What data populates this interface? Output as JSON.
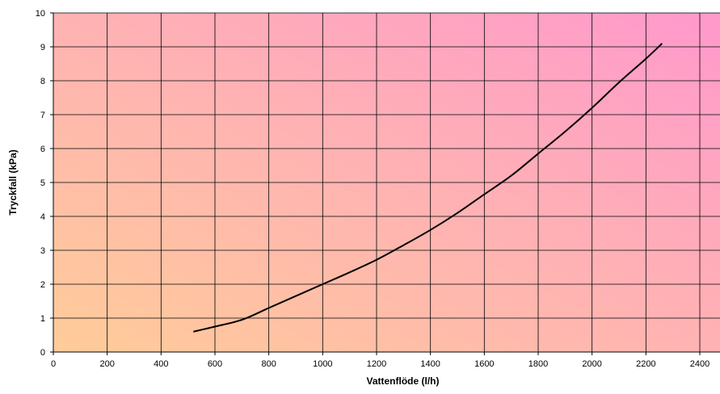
{
  "chart_data": {
    "type": "line",
    "xlabel": "Vattenflöde (l/h)",
    "ylabel": "Tryckfall (kPa)",
    "xlim": [
      0,
      2475
    ],
    "ylim": [
      0,
      10
    ],
    "x_ticks": [
      "0",
      "200",
      "400",
      "600",
      "800",
      "1000",
      "1200",
      "1400",
      "1600",
      "1800",
      "2000",
      "2200",
      "2400"
    ],
    "y_ticks": [
      "0",
      "1",
      "2",
      "3",
      "4",
      "5",
      "6",
      "7",
      "8",
      "9",
      "10"
    ],
    "grid": true,
    "series": [
      {
        "x": [
          520,
          600,
          700,
          800,
          900,
          1000,
          1100,
          1200,
          1300,
          1400,
          1500,
          1600,
          1700,
          1800,
          1900,
          2000,
          2100,
          2200,
          2260
        ],
        "y": [
          0.6,
          0.75,
          0.95,
          1.3,
          1.65,
          2.0,
          2.35,
          2.72,
          3.15,
          3.6,
          4.1,
          4.65,
          5.2,
          5.85,
          6.5,
          7.2,
          7.95,
          8.65,
          9.1
        ],
        "color": "#000000"
      }
    ],
    "background_gradient": [
      "#ffcc99",
      "#ff99cc"
    ]
  }
}
